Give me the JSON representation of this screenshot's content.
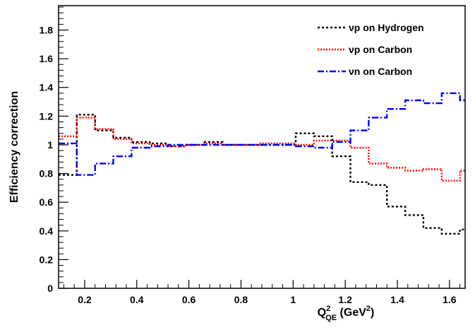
{
  "chart_data": {
    "type": "line",
    "step": true,
    "title": "",
    "xlabel": {
      "base": "Q",
      "sup": "2",
      "sub": "QE",
      "units_prefix": " (GeV",
      "units_sup": "2",
      "units_suffix": ")"
    },
    "ylabel": "Efficiency correction",
    "xlim": [
      0.1,
      1.66
    ],
    "ylim": [
      0,
      1.97
    ],
    "grid": false,
    "legend_position": "top-right",
    "x_ticks": [
      "0.2",
      "0.4",
      "0.6",
      "0.8",
      "1",
      "1.2",
      "1.4",
      "1.6"
    ],
    "y_ticks": [
      "0",
      "0.2",
      "0.4",
      "0.6",
      "0.8",
      "1",
      "1.2",
      "1.4",
      "1.6",
      "1.8"
    ],
    "bin_edges": [
      0.1,
      0.17,
      0.24,
      0.31,
      0.38,
      0.45,
      0.52,
      0.59,
      0.66,
      0.73,
      0.8,
      0.87,
      0.94,
      1.01,
      1.08,
      1.15,
      1.22,
      1.29,
      1.36,
      1.43,
      1.5,
      1.57,
      1.64,
      1.66
    ],
    "series": [
      {
        "name": "νp on Hydrogen",
        "color": "#000000",
        "dash": "3,3",
        "values": [
          0.79,
          1.21,
          1.1,
          1.05,
          1.02,
          1.01,
          0.99,
          1.0,
          1.02,
          1.0,
          1.0,
          1.0,
          1.0,
          1.08,
          1.06,
          0.92,
          0.74,
          0.72,
          0.57,
          0.51,
          0.42,
          0.38,
          0.41
        ]
      },
      {
        "name": "νp on Carbon",
        "color": "#ff0000",
        "dash": "2,2",
        "values": [
          1.06,
          1.19,
          1.11,
          1.04,
          1.01,
          1.0,
          0.99,
          1.0,
          1.01,
          1.0,
          1.0,
          1.01,
          1.01,
          1.0,
          1.03,
          1.03,
          0.98,
          0.87,
          0.84,
          0.82,
          0.83,
          0.75,
          0.82
        ]
      },
      {
        "name": "νn on Carbon",
        "color": "#0000ff",
        "dash": "9,3,2,3",
        "values": [
          1.01,
          0.79,
          0.87,
          0.92,
          0.98,
          0.99,
          1.0,
          1.0,
          1.0,
          1.0,
          1.0,
          1.0,
          1.0,
          0.99,
          0.98,
          1.02,
          1.1,
          1.19,
          1.25,
          1.31,
          1.29,
          1.36,
          1.31
        ]
      }
    ]
  }
}
